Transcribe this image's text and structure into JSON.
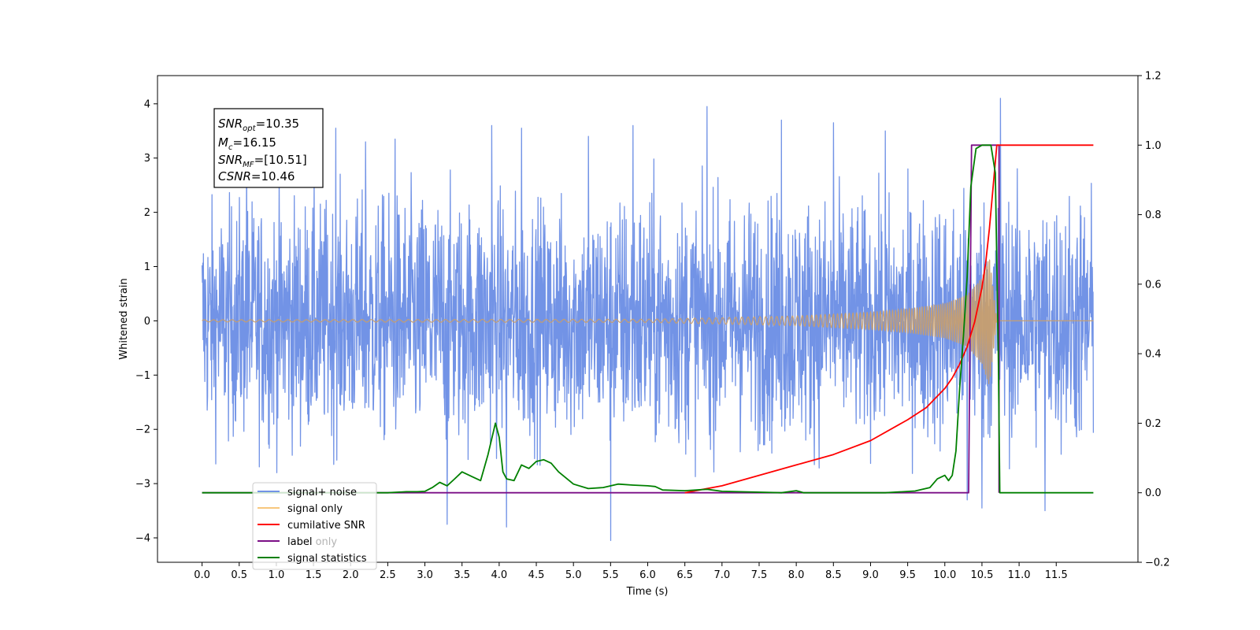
{
  "chart_data": {
    "type": "line",
    "xlabel": "Time (s)",
    "ylabel": "Whitened strain",
    "y2label": "",
    "xlim": [
      -0.6,
      12.6
    ],
    "ylim": [
      -4.45,
      4.52
    ],
    "y2lim": [
      -0.2,
      1.2
    ],
    "x_ticks": [
      0.0,
      0.5,
      1.0,
      1.5,
      2.0,
      2.5,
      3.0,
      3.5,
      4.0,
      4.5,
      5.0,
      5.5,
      6.0,
      6.5,
      7.0,
      7.5,
      8.0,
      8.5,
      9.0,
      9.5,
      10.0,
      10.5,
      11.0,
      11.5
    ],
    "x_tick_labels": [
      "0.0",
      "0.5",
      "1.0",
      "1.5",
      "2.0",
      "2.5",
      "3.0",
      "3.5",
      "4.0",
      "4.5",
      "5.0",
      "5.5",
      "6.0",
      "6.5",
      "7.0",
      "7.5",
      "8.0",
      "8.5",
      "9.0",
      "9.5",
      "10.0",
      "10.5",
      "11.0",
      "11.5"
    ],
    "y_ticks": [
      -4,
      -3,
      -2,
      -1,
      0,
      1,
      2,
      3,
      4
    ],
    "y_tick_labels": [
      "−4",
      "−3",
      "−2",
      "−1",
      "0",
      "1",
      "2",
      "3",
      "4"
    ],
    "y2_ticks": [
      -0.2,
      0.0,
      0.2,
      0.4,
      0.6,
      0.8,
      1.0,
      1.2
    ],
    "y2_tick_labels": [
      "−0.2",
      "0.0",
      "0.2",
      "0.4",
      "0.6",
      "0.8",
      "1.0",
      "1.2"
    ],
    "grid": false,
    "legend_position": "lower-left",
    "annotation": {
      "lines": [
        {
          "name": "SNR",
          "sub": "opt",
          "value": "=10.35"
        },
        {
          "name": "M",
          "sub": "c",
          "value": "=16.15"
        },
        {
          "name": "SNR",
          "sub": "MF",
          "value": "=[10.51]"
        },
        {
          "name": "CSNR",
          "sub": "",
          "value": "=10.46"
        }
      ]
    },
    "series": [
      {
        "name": "signal+ noise",
        "axis": "left",
        "color": "#7293e6",
        "style": "dense strain time series, amplitude about ±2.5 with peaks near ±4",
        "x_range": [
          0.0,
          12.0
        ],
        "envelope_upper": [
          2.6,
          2.8,
          2.7,
          2.9,
          2.8,
          2.7,
          3.0,
          2.8,
          2.9,
          2.7,
          2.9,
          2.8,
          3.0
        ],
        "envelope_lower": [
          -2.6,
          -2.8,
          -2.7,
          -2.9,
          -2.8,
          -2.7,
          -3.0,
          -2.8,
          -2.9,
          -2.7,
          -2.9,
          -2.8,
          -3.0
        ],
        "peaks": [
          {
            "x": 0.6,
            "y": 3.2
          },
          {
            "x": 1.8,
            "y": 3.55
          },
          {
            "x": 2.2,
            "y": 3.3
          },
          {
            "x": 2.6,
            "y": 3.35
          },
          {
            "x": 3.3,
            "y": -3.75
          },
          {
            "x": 3.9,
            "y": 3.6
          },
          {
            "x": 4.1,
            "y": -3.8
          },
          {
            "x": 4.3,
            "y": 3.55
          },
          {
            "x": 5.2,
            "y": 3.4
          },
          {
            "x": 5.5,
            "y": -4.05
          },
          {
            "x": 5.8,
            "y": 3.6
          },
          {
            "x": 6.8,
            "y": 3.95
          },
          {
            "x": 7.8,
            "y": 3.7
          },
          {
            "x": 8.5,
            "y": 3.65
          },
          {
            "x": 9.2,
            "y": 3.5
          },
          {
            "x": 10.3,
            "y": -3.3
          },
          {
            "x": 10.5,
            "y": -3.45
          },
          {
            "x": 10.75,
            "y": 4.1
          },
          {
            "x": 11.35,
            "y": -3.5
          }
        ]
      },
      {
        "name": "signal only",
        "axis": "left",
        "color": "#f7c77d",
        "style": "chirp oscillation with growing amplitude ending near 10.7 s",
        "x": [
          0.0,
          6.0,
          7.0,
          8.0,
          9.0,
          9.5,
          10.0,
          10.3,
          10.5,
          10.6,
          10.7,
          12.0
        ],
        "amplitude": [
          0.02,
          0.03,
          0.06,
          0.09,
          0.16,
          0.22,
          0.32,
          0.48,
          0.8,
          1.2,
          0.0,
          0.0
        ]
      },
      {
        "name": "cumilative SNR",
        "axis": "right",
        "color": "#ff0000",
        "x": [
          6.5,
          7.0,
          7.5,
          8.0,
          8.5,
          9.0,
          9.5,
          9.75,
          10.0,
          10.1,
          10.2,
          10.3,
          10.4,
          10.5,
          10.55,
          10.6,
          10.65,
          10.7,
          12.0
        ],
        "values": [
          0.0,
          0.02,
          0.05,
          0.08,
          0.11,
          0.15,
          0.21,
          0.245,
          0.3,
          0.33,
          0.37,
          0.42,
          0.49,
          0.59,
          0.66,
          0.76,
          0.88,
          1.0,
          1.0
        ]
      },
      {
        "name": "label",
        "axis": "right",
        "color": "#7b0f86",
        "x": [
          0.0,
          10.32,
          10.36,
          10.73,
          10.73
        ],
        "values": [
          0.0,
          0.0,
          1.0,
          1.0,
          0.0
        ]
      },
      {
        "name": "label only",
        "axis": "right",
        "color": "#7b0f86",
        "hidden_in_plot": true
      },
      {
        "name": "signal statistics",
        "axis": "right",
        "color": "#008000",
        "x": [
          0.0,
          2.0,
          2.5,
          2.75,
          2.9,
          3.0,
          3.1,
          3.2,
          3.3,
          3.4,
          3.5,
          3.55,
          3.65,
          3.75,
          3.85,
          3.95,
          4.0,
          4.05,
          4.1,
          4.2,
          4.3,
          4.4,
          4.5,
          4.6,
          4.7,
          4.8,
          5.0,
          5.2,
          5.4,
          5.6,
          5.8,
          6.0,
          6.1,
          6.2,
          6.5,
          6.8,
          7.0,
          7.8,
          8.0,
          8.1,
          9.2,
          9.6,
          9.8,
          9.9,
          10.0,
          10.05,
          10.1,
          10.15,
          10.2,
          10.25,
          10.3,
          10.35,
          10.42,
          10.5,
          10.62,
          10.68,
          10.72,
          10.74,
          12.0
        ],
        "values": [
          0.0,
          0.0,
          0.0,
          0.003,
          0.003,
          0.004,
          0.015,
          0.03,
          0.02,
          0.04,
          0.06,
          0.055,
          0.045,
          0.035,
          0.11,
          0.2,
          0.16,
          0.06,
          0.04,
          0.035,
          0.08,
          0.07,
          0.09,
          0.095,
          0.085,
          0.06,
          0.025,
          0.012,
          0.015,
          0.025,
          0.022,
          0.02,
          0.018,
          0.008,
          0.006,
          0.01,
          0.004,
          0.0,
          0.006,
          0.0,
          0.0,
          0.005,
          0.015,
          0.04,
          0.05,
          0.035,
          0.05,
          0.12,
          0.3,
          0.45,
          0.62,
          0.88,
          0.99,
          1.0,
          1.0,
          0.92,
          0.4,
          0.0,
          0.0
        ]
      }
    ]
  }
}
